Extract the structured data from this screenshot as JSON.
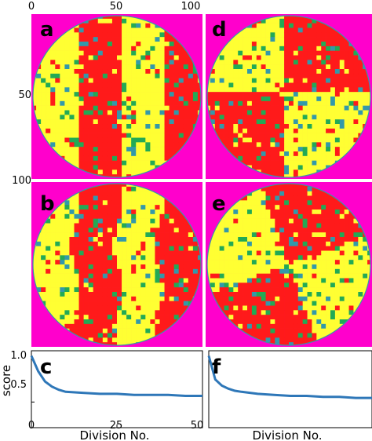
{
  "colors": {
    "magenta": "#ff00cc",
    "red": "#ff1a1a",
    "yellow": "#ffff33",
    "green": "#22aa55",
    "teal": "#3399aa",
    "line": "#2e77b8",
    "frame": "#000000"
  },
  "chart_data": [
    {
      "type": "heatmap",
      "panel": "a",
      "pattern": "vertical-stripes-sharp",
      "axes": {
        "top_ticks": [
          "0",
          "50",
          "100"
        ],
        "left_ticks": [
          "50",
          "100"
        ]
      }
    },
    {
      "type": "heatmap",
      "panel": "d",
      "pattern": "quadrants-sharp"
    },
    {
      "type": "heatmap",
      "panel": "b",
      "pattern": "vertical-stripes-evolved"
    },
    {
      "type": "heatmap",
      "panel": "e",
      "pattern": "quadrants-evolved"
    },
    {
      "type": "line",
      "panel": "c",
      "ylabel": "score",
      "xlabel": "Division No.",
      "xlim": [
        0,
        50
      ],
      "ylim": [
        0.25,
        1.0
      ],
      "xticks": [
        "0",
        "25",
        "50"
      ],
      "yticks": [
        "1.0",
        "0.5"
      ],
      "x": [
        0,
        2,
        4,
        6,
        8,
        10,
        15,
        20,
        25,
        30,
        35,
        40,
        45,
        50
      ],
      "y": [
        0.95,
        0.8,
        0.7,
        0.65,
        0.62,
        0.6,
        0.59,
        0.58,
        0.58,
        0.57,
        0.57,
        0.57,
        0.56,
        0.56
      ]
    },
    {
      "type": "line",
      "panel": "f",
      "xlabel": "Division No.",
      "ylim": [
        0.25,
        1.0
      ],
      "x": [
        0,
        2,
        4,
        6,
        8,
        10,
        15,
        20,
        25,
        30,
        35,
        40,
        45,
        50
      ],
      "y": [
        0.95,
        0.72,
        0.66,
        0.63,
        0.61,
        0.6,
        0.58,
        0.57,
        0.56,
        0.56,
        0.55,
        0.55,
        0.54,
        0.54
      ]
    }
  ]
}
